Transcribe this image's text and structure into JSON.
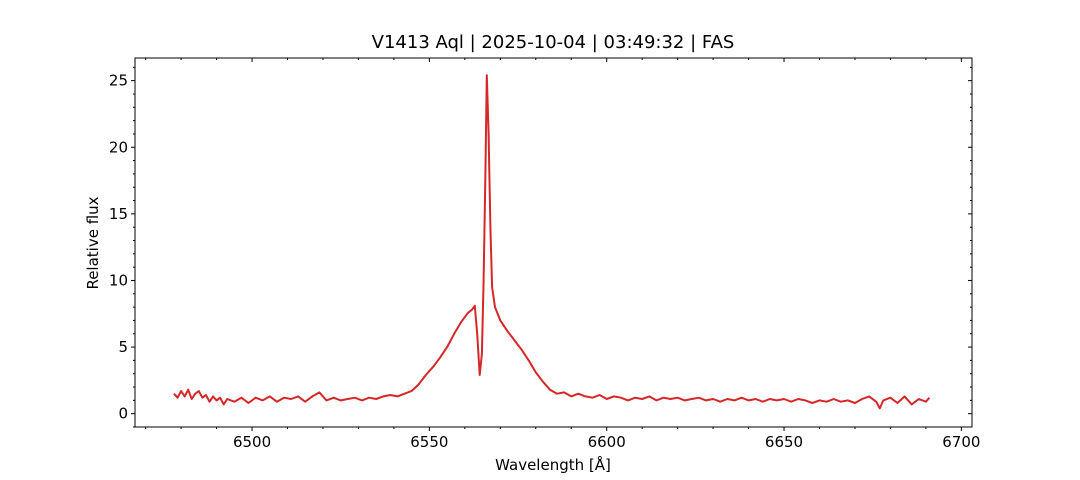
{
  "chart_data": {
    "type": "line",
    "title": "V1413 Aql | 2025-10-04 | 03:49:32 | FAS",
    "xlabel": "Wavelength [Å]",
    "ylabel": "Relative flux",
    "xlim": [
      6467,
      6703
    ],
    "ylim": [
      -1,
      26.7
    ],
    "xticks": [
      6500,
      6550,
      6600,
      6650,
      6700
    ],
    "yticks": [
      0,
      5,
      10,
      15,
      20,
      25
    ],
    "x_minor_step": 10,
    "y_minor_step": 1,
    "grid": false,
    "legend": "none",
    "series": [
      {
        "color": "#d62728",
        "points": [
          [
            6478,
            1.5
          ],
          [
            6479,
            1.2
          ],
          [
            6480,
            1.7
          ],
          [
            6481,
            1.3
          ],
          [
            6482,
            1.8
          ],
          [
            6483,
            1.1
          ],
          [
            6484,
            1.5
          ],
          [
            6485,
            1.7
          ],
          [
            6486,
            1.2
          ],
          [
            6487,
            1.4
          ],
          [
            6488,
            0.9
          ],
          [
            6489,
            1.3
          ],
          [
            6490,
            1.0
          ],
          [
            6491,
            1.2
          ],
          [
            6492,
            0.7
          ],
          [
            6493,
            1.1
          ],
          [
            6495,
            0.9
          ],
          [
            6497,
            1.2
          ],
          [
            6499,
            0.8
          ],
          [
            6501,
            1.2
          ],
          [
            6503,
            1.0
          ],
          [
            6505,
            1.3
          ],
          [
            6507,
            0.9
          ],
          [
            6509,
            1.2
          ],
          [
            6511,
            1.1
          ],
          [
            6513,
            1.3
          ],
          [
            6515,
            0.9
          ],
          [
            6517,
            1.3
          ],
          [
            6519,
            1.6
          ],
          [
            6521,
            1.0
          ],
          [
            6523,
            1.2
          ],
          [
            6525,
            1.0
          ],
          [
            6527,
            1.1
          ],
          [
            6529,
            1.2
          ],
          [
            6531,
            1.0
          ],
          [
            6533,
            1.2
          ],
          [
            6535,
            1.1
          ],
          [
            6537,
            1.3
          ],
          [
            6539,
            1.4
          ],
          [
            6541,
            1.3
          ],
          [
            6543,
            1.5
          ],
          [
            6545,
            1.7
          ],
          [
            6547,
            2.2
          ],
          [
            6549,
            2.9
          ],
          [
            6551,
            3.5
          ],
          [
            6553,
            4.2
          ],
          [
            6555,
            5.0
          ],
          [
            6557,
            6.0
          ],
          [
            6559,
            6.9
          ],
          [
            6561,
            7.6
          ],
          [
            6562,
            7.8
          ],
          [
            6562.8,
            8.1
          ],
          [
            6563.5,
            6.0
          ],
          [
            6564.2,
            2.9
          ],
          [
            6564.8,
            4.5
          ],
          [
            6565.3,
            10.0
          ],
          [
            6565.8,
            18.0
          ],
          [
            6566.2,
            25.4
          ],
          [
            6566.7,
            21.0
          ],
          [
            6567.2,
            14.0
          ],
          [
            6567.7,
            9.5
          ],
          [
            6568.5,
            8.0
          ],
          [
            6570,
            7.0
          ],
          [
            6572,
            6.2
          ],
          [
            6574,
            5.5
          ],
          [
            6576,
            4.8
          ],
          [
            6578,
            4.0
          ],
          [
            6580,
            3.1
          ],
          [
            6582,
            2.4
          ],
          [
            6584,
            1.8
          ],
          [
            6586,
            1.5
          ],
          [
            6588,
            1.6
          ],
          [
            6590,
            1.3
          ],
          [
            6592,
            1.5
          ],
          [
            6594,
            1.3
          ],
          [
            6596,
            1.2
          ],
          [
            6598,
            1.4
          ],
          [
            6600,
            1.1
          ],
          [
            6602,
            1.3
          ],
          [
            6604,
            1.2
          ],
          [
            6606,
            1.0
          ],
          [
            6608,
            1.2
          ],
          [
            6610,
            1.1
          ],
          [
            6612,
            1.3
          ],
          [
            6614,
            1.0
          ],
          [
            6616,
            1.2
          ],
          [
            6618,
            1.1
          ],
          [
            6620,
            1.2
          ],
          [
            6622,
            1.0
          ],
          [
            6624,
            1.1
          ],
          [
            6626,
            1.2
          ],
          [
            6628,
            1.0
          ],
          [
            6630,
            1.1
          ],
          [
            6632,
            0.9
          ],
          [
            6634,
            1.1
          ],
          [
            6636,
            1.0
          ],
          [
            6638,
            1.2
          ],
          [
            6640,
            1.0
          ],
          [
            6642,
            1.1
          ],
          [
            6644,
            0.9
          ],
          [
            6646,
            1.1
          ],
          [
            6648,
            1.0
          ],
          [
            6650,
            1.1
          ],
          [
            6652,
            0.9
          ],
          [
            6654,
            1.1
          ],
          [
            6656,
            1.0
          ],
          [
            6658,
            0.8
          ],
          [
            6660,
            1.0
          ],
          [
            6662,
            0.9
          ],
          [
            6664,
            1.1
          ],
          [
            6666,
            0.9
          ],
          [
            6668,
            1.0
          ],
          [
            6670,
            0.8
          ],
          [
            6672,
            1.1
          ],
          [
            6674,
            1.3
          ],
          [
            6676,
            0.9
          ],
          [
            6677,
            0.4
          ],
          [
            6678,
            1.0
          ],
          [
            6680,
            1.2
          ],
          [
            6682,
            0.8
          ],
          [
            6684,
            1.3
          ],
          [
            6686,
            0.7
          ],
          [
            6688,
            1.1
          ],
          [
            6690,
            0.9
          ],
          [
            6691,
            1.2
          ]
        ]
      }
    ]
  }
}
